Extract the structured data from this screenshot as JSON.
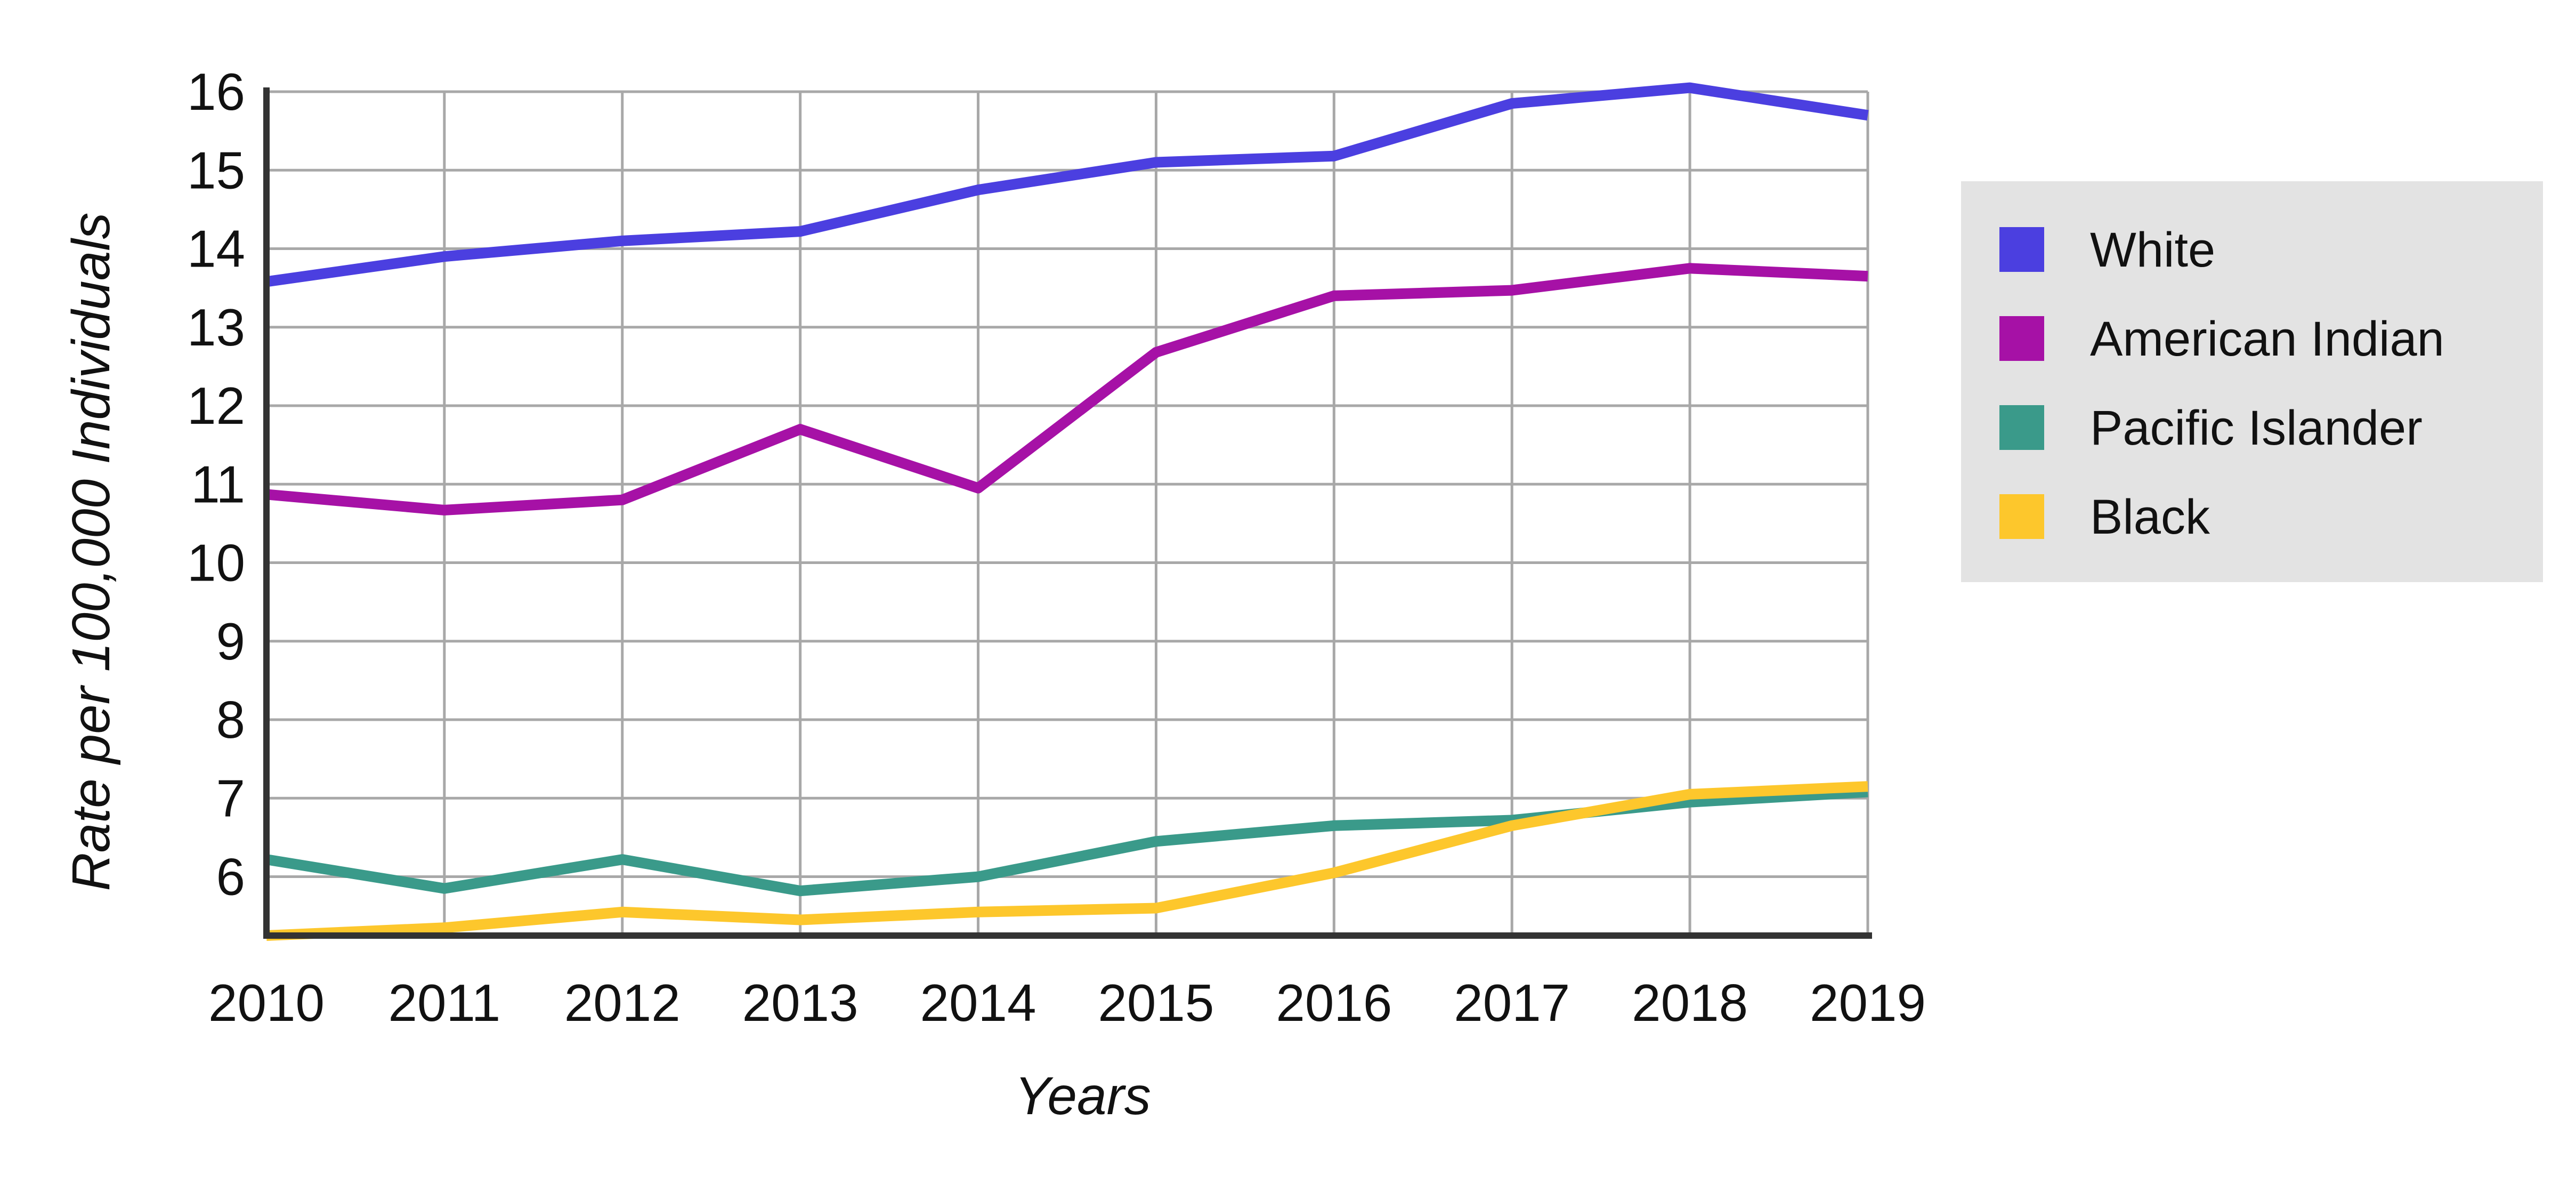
{
  "chart_data": {
    "type": "line",
    "title": "",
    "xlabel": "Years",
    "ylabel": "Rate per 100,000 Individuals",
    "x": [
      2010,
      2011,
      2012,
      2013,
      2014,
      2015,
      2016,
      2017,
      2018,
      2019
    ],
    "xlim": [
      2010,
      2019
    ],
    "ylim": [
      5.25,
      16
    ],
    "yticks": [
      6,
      7,
      8,
      9,
      10,
      11,
      12,
      13,
      14,
      15,
      16
    ],
    "grid": true,
    "legend_position": "right",
    "series": [
      {
        "name": "White",
        "color": "#4b3fe0",
        "values": [
          13.58,
          13.9,
          14.1,
          14.22,
          14.75,
          15.1,
          15.18,
          15.85,
          16.05,
          15.7
        ]
      },
      {
        "name": "American Indian",
        "color": "#a611a6",
        "values": [
          10.87,
          10.67,
          10.8,
          11.7,
          10.95,
          12.68,
          13.4,
          13.47,
          13.75,
          13.65
        ]
      },
      {
        "name": "Pacific Islander",
        "color": "#3a9a8a",
        "values": [
          6.22,
          5.85,
          6.22,
          5.82,
          6.0,
          6.45,
          6.65,
          6.72,
          6.95,
          7.08
        ]
      },
      {
        "name": "Black",
        "color": "#fdc72c",
        "values": [
          5.25,
          5.35,
          5.55,
          5.45,
          5.55,
          5.6,
          6.05,
          6.65,
          7.05,
          7.15
        ]
      }
    ]
  }
}
